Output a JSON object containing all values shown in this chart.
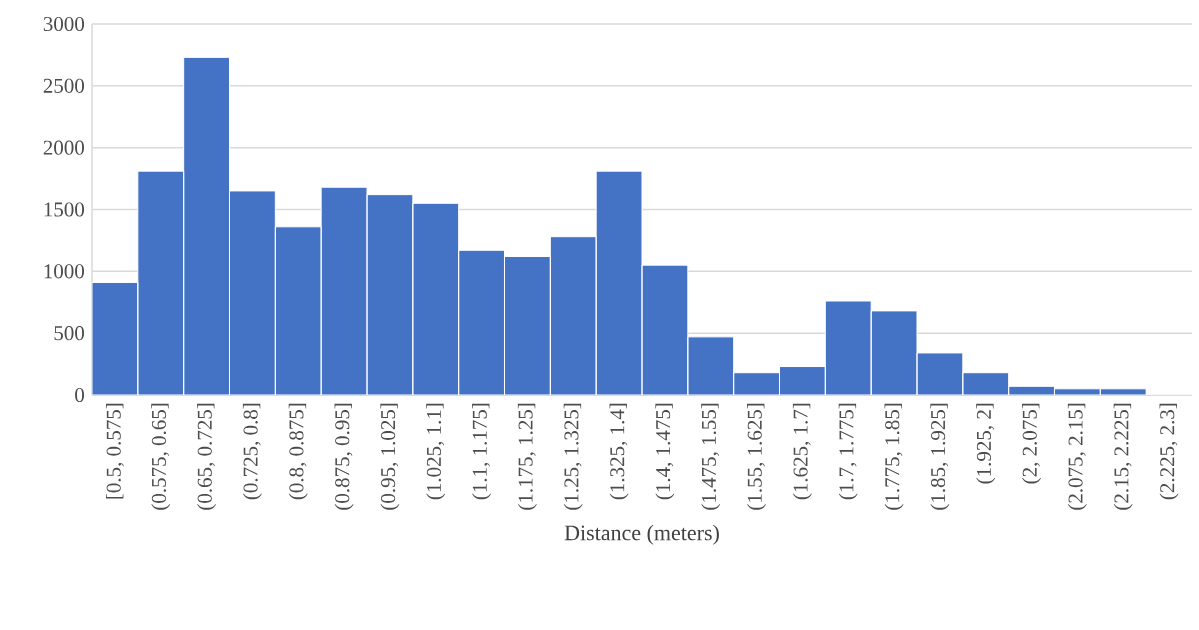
{
  "chart_data": {
    "type": "bar",
    "xlabel": "Distance (meters)",
    "categories": [
      "[0.5, 0.575]",
      "(0.575, 0.65]",
      "(0.65, 0.725]",
      "(0.725, 0.8]",
      "(0.8, 0.875]",
      "(0.875, 0.95]",
      "(0.95, 1.025]",
      "(1.025, 1.1]",
      "(1.1, 1.175]",
      "(1.175, 1.25]",
      "(1.25, 1.325]",
      "(1.325, 1.4]",
      "(1.4, 1.475]",
      "(1.475, 1.55]",
      "(1.55, 1.625]",
      "(1.625, 1.7]",
      "(1.7, 1.775]",
      "(1.775, 1.85]",
      "(1.85, 1.925]",
      "(1.925, 2]",
      "(2, 2.075]",
      "(2.075, 2.15]",
      "(2.15, 2.225]",
      "(2.225, 2.3]"
    ],
    "values": [
      910,
      1810,
      2730,
      1650,
      1360,
      1680,
      1620,
      1550,
      1170,
      1120,
      1280,
      1810,
      1050,
      470,
      180,
      230,
      760,
      680,
      340,
      180,
      70,
      50,
      50,
      0
    ],
    "color": "#4472c4",
    "ylim": [
      0,
      3000
    ],
    "yticks": [
      0,
      500,
      1000,
      1500,
      2000,
      2500,
      3000
    ],
    "grid": "y"
  }
}
